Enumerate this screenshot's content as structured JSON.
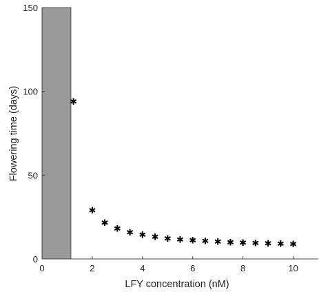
{
  "chart_data": {
    "type": "scatter",
    "title": "",
    "xlabel": "LFY concentration (nM)",
    "ylabel": "Flowering time (days)",
    "xlim": [
      0,
      11
    ],
    "ylim": [
      0,
      150
    ],
    "xticks": [
      0,
      2,
      4,
      6,
      8,
      10
    ],
    "yticks": [
      0,
      50,
      100,
      150
    ],
    "shaded_region": {
      "x": [
        0,
        1.15
      ],
      "y": [
        0,
        150
      ],
      "color": "#999999"
    },
    "marker": "*",
    "marker_glyph": "✱",
    "grid": false,
    "legend": "none",
    "series": [
      {
        "x": [
          1.25,
          2,
          2.5,
          3,
          3.5,
          4,
          4.5,
          5,
          5.5,
          6,
          6.5,
          7,
          7.5,
          8,
          8.5,
          9,
          9.5,
          10
        ],
        "y": [
          94,
          29,
          21.5,
          18,
          15.8,
          14.3,
          13.1,
          12.2,
          11.6,
          11.0,
          10.6,
          10.2,
          9.9,
          9.6,
          9.4,
          9.2,
          9.0,
          8.8
        ]
      }
    ]
  }
}
